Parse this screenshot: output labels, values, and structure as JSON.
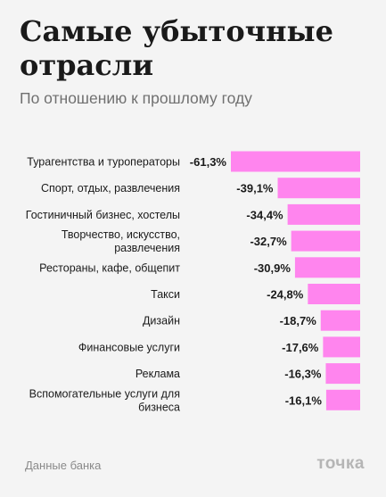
{
  "header": {
    "title": "Самые убыточные отрасли",
    "subtitle": "По отношению к прошлому году"
  },
  "footer": {
    "source": "Данные банка",
    "brand": "точка"
  },
  "colors": {
    "bar": "#ff85ee",
    "background": "#f4f4f4",
    "text": "#1a1a1a",
    "muted": "#8a8a8a"
  },
  "chart_data": {
    "type": "bar",
    "orientation": "horizontal",
    "title": "Самые убыточные отрасли",
    "subtitle": "По отношению к прошлому году",
    "xlabel": "",
    "ylabel": "",
    "unit": "%",
    "xlim": [
      -61.3,
      0
    ],
    "grid": false,
    "legend": "none",
    "categories": [
      [
        "Турагентства и туроператоры"
      ],
      [
        "Спорт, отдых, развлечения"
      ],
      [
        "Гостиничный бизнес, хостелы"
      ],
      [
        "Творчество, искусство,",
        "развлечения"
      ],
      [
        "Рестораны, кафе, общепит"
      ],
      [
        "Такси"
      ],
      [
        "Дизайн"
      ],
      [
        "Финансовые услуги"
      ],
      [
        "Реклама"
      ],
      [
        "Вспомогательные услуги для",
        "бизнеса"
      ]
    ],
    "values": [
      -61.3,
      -39.1,
      -34.4,
      -32.7,
      -30.9,
      -24.8,
      -18.7,
      -17.6,
      -16.3,
      -16.1
    ],
    "value_labels": [
      "-61,3%",
      "-39,1%",
      "-34,4%",
      "-32,7%",
      "-30,9%",
      "-24,8%",
      "-18,7%",
      "-17,6%",
      "-16,3%",
      "-16,1%"
    ]
  }
}
